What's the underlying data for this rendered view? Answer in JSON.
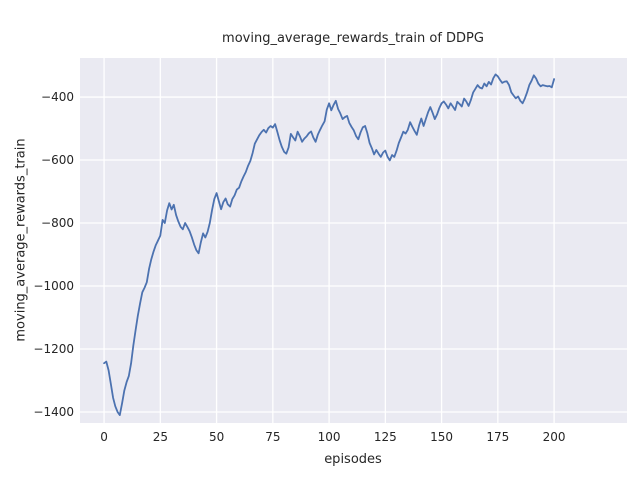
{
  "chart_data": {
    "type": "line",
    "title": "moving_average_rewards_train of DDPG",
    "xlabel": "episodes",
    "ylabel": "moving_average_rewards_train",
    "grid": true,
    "legend": "none",
    "xlim": [
      -10.7,
      232.4
    ],
    "ylim": [
      -1435,
      -276
    ],
    "x_ticks": [
      0,
      25,
      50,
      75,
      100,
      125,
      150,
      175,
      200
    ],
    "x_tick_labels": [
      "0",
      "25",
      "50",
      "75",
      "100",
      "125",
      "150",
      "175",
      "200"
    ],
    "y_ticks": [
      -400,
      -600,
      -800,
      -1000,
      -1200,
      -1400
    ],
    "y_tick_labels": [
      "−400",
      "−600",
      "−800",
      "−1000",
      "−1200",
      "−1400"
    ],
    "style": {
      "line_color": "#4c72b0",
      "axes_bg": "#eaeaf2",
      "grid_color": "#ffffff",
      "text_color": "#262626"
    },
    "series": [
      {
        "name": "moving_average_rewards_train",
        "points": [
          [
            0,
            -1245
          ],
          [
            1,
            -1240
          ],
          [
            2,
            -1268
          ],
          [
            3,
            -1310
          ],
          [
            4,
            -1355
          ],
          [
            5,
            -1382
          ],
          [
            6,
            -1400
          ],
          [
            7,
            -1410
          ],
          [
            8,
            -1372
          ],
          [
            9,
            -1332
          ],
          [
            10,
            -1305
          ],
          [
            11,
            -1286
          ],
          [
            12,
            -1245
          ],
          [
            13,
            -1190
          ],
          [
            14,
            -1140
          ],
          [
            15,
            -1095
          ],
          [
            16,
            -1055
          ],
          [
            17,
            -1020
          ],
          [
            18,
            -1005
          ],
          [
            19,
            -988
          ],
          [
            20,
            -945
          ],
          [
            21,
            -915
          ],
          [
            22,
            -890
          ],
          [
            23,
            -870
          ],
          [
            24,
            -855
          ],
          [
            25,
            -840
          ],
          [
            26,
            -790
          ],
          [
            27,
            -800
          ],
          [
            28,
            -760
          ],
          [
            29,
            -737
          ],
          [
            30,
            -757
          ],
          [
            31,
            -742
          ],
          [
            32,
            -775
          ],
          [
            33,
            -795
          ],
          [
            34,
            -812
          ],
          [
            35,
            -820
          ],
          [
            36,
            -800
          ],
          [
            37,
            -812
          ],
          [
            38,
            -826
          ],
          [
            39,
            -845
          ],
          [
            40,
            -868
          ],
          [
            41,
            -886
          ],
          [
            42,
            -896
          ],
          [
            43,
            -862
          ],
          [
            44,
            -833
          ],
          [
            45,
            -846
          ],
          [
            46,
            -828
          ],
          [
            47,
            -800
          ],
          [
            48,
            -758
          ],
          [
            49,
            -724
          ],
          [
            50,
            -705
          ],
          [
            51,
            -730
          ],
          [
            52,
            -756
          ],
          [
            53,
            -734
          ],
          [
            54,
            -722
          ],
          [
            55,
            -741
          ],
          [
            56,
            -748
          ],
          [
            57,
            -724
          ],
          [
            58,
            -712
          ],
          [
            59,
            -694
          ],
          [
            60,
            -688
          ],
          [
            61,
            -668
          ],
          [
            62,
            -652
          ],
          [
            63,
            -638
          ],
          [
            64,
            -618
          ],
          [
            65,
            -603
          ],
          [
            66,
            -578
          ],
          [
            67,
            -548
          ],
          [
            68,
            -534
          ],
          [
            69,
            -521
          ],
          [
            70,
            -511
          ],
          [
            71,
            -504
          ],
          [
            72,
            -513
          ],
          [
            73,
            -499
          ],
          [
            74,
            -492
          ],
          [
            75,
            -497
          ],
          [
            76,
            -486
          ],
          [
            77,
            -510
          ],
          [
            78,
            -537
          ],
          [
            79,
            -558
          ],
          [
            80,
            -574
          ],
          [
            81,
            -580
          ],
          [
            82,
            -560
          ],
          [
            83,
            -517
          ],
          [
            84,
            -528
          ],
          [
            85,
            -538
          ],
          [
            86,
            -510
          ],
          [
            87,
            -524
          ],
          [
            88,
            -542
          ],
          [
            89,
            -532
          ],
          [
            90,
            -525
          ],
          [
            91,
            -515
          ],
          [
            92,
            -509
          ],
          [
            93,
            -528
          ],
          [
            94,
            -542
          ],
          [
            95,
            -520
          ],
          [
            96,
            -504
          ],
          [
            97,
            -490
          ],
          [
            98,
            -477
          ],
          [
            99,
            -440
          ],
          [
            100,
            -420
          ],
          [
            101,
            -442
          ],
          [
            102,
            -425
          ],
          [
            103,
            -412
          ],
          [
            104,
            -438
          ],
          [
            105,
            -452
          ],
          [
            106,
            -470
          ],
          [
            107,
            -464
          ],
          [
            108,
            -460
          ],
          [
            109,
            -482
          ],
          [
            110,
            -495
          ],
          [
            111,
            -506
          ],
          [
            112,
            -524
          ],
          [
            113,
            -534
          ],
          [
            114,
            -512
          ],
          [
            115,
            -496
          ],
          [
            116,
            -492
          ],
          [
            117,
            -514
          ],
          [
            118,
            -546
          ],
          [
            119,
            -562
          ],
          [
            120,
            -582
          ],
          [
            121,
            -568
          ],
          [
            122,
            -580
          ],
          [
            123,
            -590
          ],
          [
            124,
            -576
          ],
          [
            125,
            -570
          ],
          [
            126,
            -590
          ],
          [
            127,
            -601
          ],
          [
            128,
            -584
          ],
          [
            129,
            -590
          ],
          [
            130,
            -570
          ],
          [
            131,
            -546
          ],
          [
            132,
            -528
          ],
          [
            133,
            -510
          ],
          [
            134,
            -516
          ],
          [
            135,
            -504
          ],
          [
            136,
            -480
          ],
          [
            137,
            -494
          ],
          [
            138,
            -508
          ],
          [
            139,
            -520
          ],
          [
            140,
            -490
          ],
          [
            141,
            -468
          ],
          [
            142,
            -492
          ],
          [
            143,
            -470
          ],
          [
            144,
            -448
          ],
          [
            145,
            -432
          ],
          [
            146,
            -450
          ],
          [
            147,
            -470
          ],
          [
            148,
            -455
          ],
          [
            149,
            -435
          ],
          [
            150,
            -420
          ],
          [
            151,
            -414
          ],
          [
            152,
            -424
          ],
          [
            153,
            -436
          ],
          [
            154,
            -420
          ],
          [
            155,
            -430
          ],
          [
            156,
            -441
          ],
          [
            157,
            -415
          ],
          [
            158,
            -422
          ],
          [
            159,
            -430
          ],
          [
            160,
            -405
          ],
          [
            161,
            -414
          ],
          [
            162,
            -428
          ],
          [
            163,
            -410
          ],
          [
            164,
            -386
          ],
          [
            165,
            -374
          ],
          [
            166,
            -362
          ],
          [
            167,
            -370
          ],
          [
            168,
            -373
          ],
          [
            169,
            -357
          ],
          [
            170,
            -366
          ],
          [
            171,
            -352
          ],
          [
            172,
            -360
          ],
          [
            173,
            -340
          ],
          [
            174,
            -328
          ],
          [
            175,
            -334
          ],
          [
            176,
            -346
          ],
          [
            177,
            -355
          ],
          [
            178,
            -351
          ],
          [
            179,
            -350
          ],
          [
            180,
            -362
          ],
          [
            181,
            -385
          ],
          [
            182,
            -395
          ],
          [
            183,
            -404
          ],
          [
            184,
            -398
          ],
          [
            185,
            -412
          ],
          [
            186,
            -420
          ],
          [
            187,
            -405
          ],
          [
            188,
            -385
          ],
          [
            189,
            -362
          ],
          [
            190,
            -348
          ],
          [
            191,
            -331
          ],
          [
            192,
            -341
          ],
          [
            193,
            -357
          ],
          [
            194,
            -366
          ],
          [
            195,
            -362
          ],
          [
            196,
            -364
          ],
          [
            197,
            -366
          ],
          [
            198,
            -365
          ],
          [
            199,
            -369
          ],
          [
            200,
            -343
          ]
        ]
      }
    ]
  }
}
